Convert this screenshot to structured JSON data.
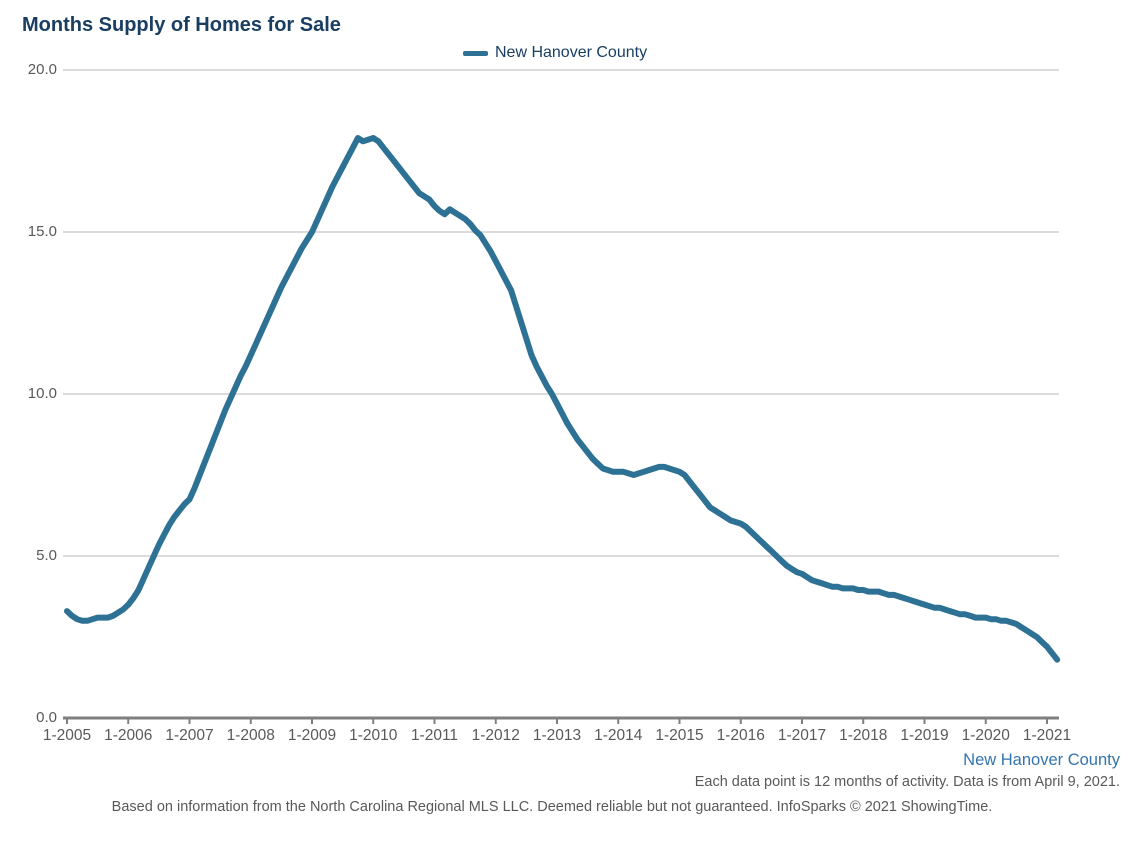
{
  "title": "Months Supply of Homes for Sale",
  "legend": {
    "label": "New Hanover County",
    "swatch_color": "#2d7195"
  },
  "annotations": {
    "series_label": "New Hanover County",
    "data_note": "Each data point is 12 months of activity. Data is from April 9, 2021.",
    "footer": "Based on information from the North Carolina Regional MLS LLC. Deemed reliable but not guaranteed. InfoSparks © 2021 ShowingTime."
  },
  "colors": {
    "line": "#2d7195",
    "title_text": "#1a3e62",
    "annotation_blue": "#3474ad",
    "muted_text": "#595959",
    "axis": "#7f7f7f",
    "gridline": "#cfcfcf"
  },
  "chart_data": {
    "type": "line",
    "title": "Months Supply of Homes for Sale",
    "xlabel": "",
    "ylabel": "",
    "ylim": [
      0,
      20
    ],
    "grid": "horizontal",
    "gridline_values": [
      20,
      15,
      10,
      5
    ],
    "legend_position": "top-center",
    "y_ticks": [
      {
        "label": "20.0",
        "value": 20
      },
      {
        "label": "15.0",
        "value": 15
      },
      {
        "label": "10.0",
        "value": 10
      },
      {
        "label": "5.0",
        "value": 5
      },
      {
        "label": "0.0",
        "value": 0
      }
    ],
    "x_tick_labels": [
      "1-2005",
      "1-2006",
      "1-2007",
      "1-2008",
      "1-2009",
      "1-2010",
      "1-2011",
      "1-2012",
      "1-2013",
      "1-2014",
      "1-2015",
      "1-2016",
      "1-2017",
      "1-2018",
      "1-2019",
      "1-2020",
      "1-2021"
    ],
    "series": [
      {
        "name": "New Hanover County",
        "start": "2005-01",
        "frequency": "monthly",
        "end": "2021-03",
        "values": [
          3.3,
          3.15,
          3.05,
          3.0,
          3.0,
          3.05,
          3.1,
          3.1,
          3.1,
          3.15,
          3.25,
          3.35,
          3.5,
          3.7,
          3.95,
          4.3,
          4.65,
          5.0,
          5.35,
          5.65,
          5.95,
          6.2,
          6.4,
          6.6,
          6.75,
          7.1,
          7.5,
          7.9,
          8.3,
          8.7,
          9.1,
          9.5,
          9.85,
          10.2,
          10.55,
          10.85,
          11.2,
          11.55,
          11.9,
          12.25,
          12.6,
          12.95,
          13.3,
          13.6,
          13.9,
          14.2,
          14.5,
          14.75,
          15.0,
          15.35,
          15.7,
          16.05,
          16.4,
          16.7,
          17.0,
          17.3,
          17.6,
          17.9,
          17.8,
          17.85,
          17.9,
          17.8,
          17.6,
          17.4,
          17.2,
          17.0,
          16.8,
          16.6,
          16.4,
          16.2,
          16.1,
          16.0,
          15.8,
          15.65,
          15.55,
          15.7,
          15.6,
          15.5,
          15.4,
          15.25,
          15.05,
          14.9,
          14.65,
          14.4,
          14.1,
          13.8,
          13.5,
          13.2,
          12.7,
          12.2,
          11.7,
          11.2,
          10.85,
          10.55,
          10.25,
          10.0,
          9.7,
          9.4,
          9.1,
          8.85,
          8.6,
          8.4,
          8.2,
          8.0,
          7.85,
          7.7,
          7.65,
          7.6,
          7.6,
          7.6,
          7.55,
          7.5,
          7.55,
          7.6,
          7.65,
          7.7,
          7.75,
          7.75,
          7.7,
          7.65,
          7.6,
          7.5,
          7.3,
          7.1,
          6.9,
          6.7,
          6.5,
          6.4,
          6.3,
          6.2,
          6.1,
          6.05,
          6.0,
          5.9,
          5.75,
          5.6,
          5.45,
          5.3,
          5.15,
          5.0,
          4.85,
          4.7,
          4.6,
          4.5,
          4.45,
          4.35,
          4.25,
          4.2,
          4.15,
          4.1,
          4.05,
          4.05,
          4.0,
          4.0,
          4.0,
          3.95,
          3.95,
          3.9,
          3.9,
          3.9,
          3.85,
          3.8,
          3.8,
          3.75,
          3.7,
          3.65,
          3.6,
          3.55,
          3.5,
          3.45,
          3.4,
          3.4,
          3.35,
          3.3,
          3.25,
          3.2,
          3.2,
          3.15,
          3.1,
          3.1,
          3.1,
          3.05,
          3.05,
          3.0,
          3.0,
          2.95,
          2.9,
          2.8,
          2.7,
          2.6,
          2.5,
          2.35,
          2.2,
          2.0,
          1.8
        ]
      }
    ]
  }
}
